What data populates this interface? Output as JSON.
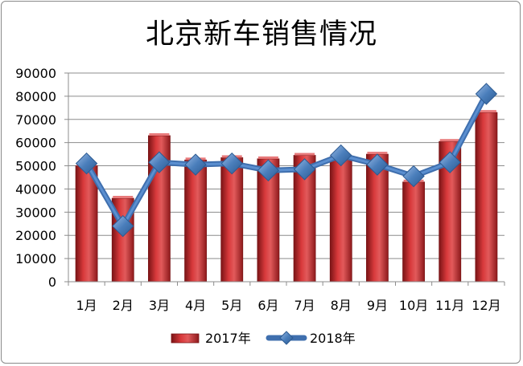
{
  "chart_data": {
    "type": "bar",
    "title": "北京新车销售情况",
    "categories": [
      "1月",
      "2月",
      "3月",
      "4月",
      "5月",
      "6月",
      "7月",
      "8月",
      "9月",
      "10月",
      "11月",
      "12月"
    ],
    "series": [
      {
        "name": "2017年",
        "type": "bar",
        "color": "#c0292b",
        "values": [
          50000,
          36000,
          63000,
          52500,
          53500,
          53000,
          54500,
          54000,
          55000,
          43000,
          60500,
          73000
        ]
      },
      {
        "name": "2018年",
        "type": "line",
        "color": "#4a7ebb",
        "values": [
          51000,
          24000,
          51500,
          50500,
          51000,
          48000,
          48500,
          54500,
          50500,
          45500,
          51500,
          81000
        ]
      }
    ],
    "ylim": [
      0,
      90000
    ],
    "yticks": [
      "0",
      "10000",
      "20000",
      "30000",
      "40000",
      "50000",
      "60000",
      "70000",
      "80000",
      "90000"
    ],
    "grid": true,
    "legend_position": "bottom"
  }
}
